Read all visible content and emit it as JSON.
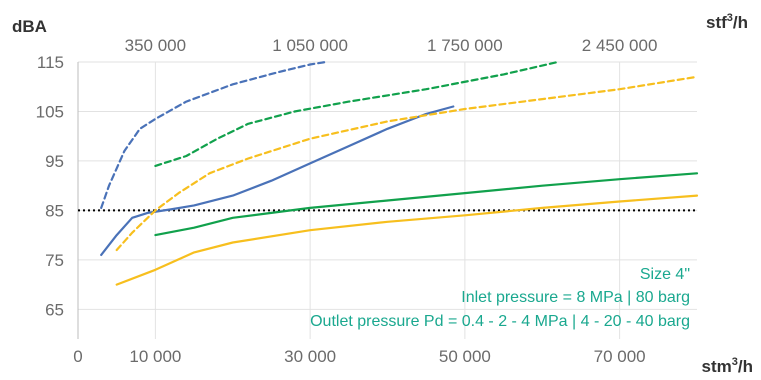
{
  "chart_data": {
    "type": "line",
    "y_unit_label": "dBA",
    "top_unit_base": "stf",
    "top_unit_sup": "3",
    "top_unit_tail": "/h",
    "bottom_unit_base": "stm",
    "bottom_unit_sup": "3",
    "bottom_unit_tail": "/h",
    "xlim": [
      0,
      80000
    ],
    "ylim": [
      59,
      115
    ],
    "y_ticks": [
      {
        "value": 115,
        "label": "115"
      },
      {
        "value": 105,
        "label": "105"
      },
      {
        "value": 95,
        "label": "95"
      },
      {
        "value": 85,
        "label": "85"
      },
      {
        "value": 75,
        "label": "75"
      },
      {
        "value": 65,
        "label": "65"
      }
    ],
    "x_ticks": [
      {
        "value": 0,
        "label": "0"
      },
      {
        "value": 10000,
        "label": "10 000"
      },
      {
        "value": 30000,
        "label": "30 000"
      },
      {
        "value": 50000,
        "label": "50 000"
      },
      {
        "value": 70000,
        "label": "70 000"
      }
    ],
    "top_ticks": [
      {
        "value": 10000,
        "label": "350 000"
      },
      {
        "value": 30000,
        "label": "1 050 000"
      },
      {
        "value": 50000,
        "label": "1 750 000"
      },
      {
        "value": 70000,
        "label": "2 450 000"
      }
    ],
    "reference_line": {
      "y": 85,
      "style": "dotted",
      "color": "#000000"
    },
    "annotations": [
      "Size 4\"",
      "Inlet pressure = 8 MPa | 80 barg",
      "Outlet pressure Pd = 0.4 - 2 - 4 MPa | 4 - 20 - 40 barg"
    ],
    "grid": true,
    "series": [
      {
        "color": "#4a72b8",
        "style": "dashed",
        "points": [
          [
            3000,
            85.5
          ],
          [
            4000,
            90
          ],
          [
            6000,
            97
          ],
          [
            8000,
            101.5
          ],
          [
            10000,
            103.5
          ],
          [
            14000,
            107
          ],
          [
            20000,
            110.5
          ],
          [
            26000,
            113
          ],
          [
            30000,
            114.5
          ],
          [
            32000,
            115
          ]
        ]
      },
      {
        "color": "#4a72b8",
        "style": "solid",
        "points": [
          [
            3000,
            76
          ],
          [
            5000,
            80
          ],
          [
            7000,
            83.5
          ],
          [
            9000,
            84.5
          ],
          [
            12000,
            85.2
          ],
          [
            15000,
            86
          ],
          [
            20000,
            88
          ],
          [
            25000,
            91
          ],
          [
            30000,
            94.5
          ],
          [
            35000,
            98
          ],
          [
            40000,
            101.5
          ],
          [
            45000,
            104.5
          ],
          [
            48500,
            106
          ]
        ]
      },
      {
        "color": "#11a14c",
        "style": "dashed",
        "points": [
          [
            10000,
            94
          ],
          [
            14000,
            96
          ],
          [
            18000,
            99.5
          ],
          [
            22000,
            102.5
          ],
          [
            28000,
            105
          ],
          [
            35000,
            107
          ],
          [
            45000,
            109.5
          ],
          [
            55000,
            112.5
          ],
          [
            62000,
            115
          ]
        ]
      },
      {
        "color": "#11a14c",
        "style": "solid",
        "points": [
          [
            10000,
            80
          ],
          [
            15000,
            81.5
          ],
          [
            20000,
            83.5
          ],
          [
            25000,
            84.5
          ],
          [
            30000,
            85.5
          ],
          [
            40000,
            87
          ],
          [
            50000,
            88.5
          ],
          [
            60000,
            90
          ],
          [
            70000,
            91.3
          ],
          [
            80000,
            92.5
          ]
        ]
      },
      {
        "color": "#f7bf1e",
        "style": "dashed",
        "points": [
          [
            5000,
            77
          ],
          [
            7000,
            80.5
          ],
          [
            10000,
            85
          ],
          [
            13000,
            88.5
          ],
          [
            17000,
            92.5
          ],
          [
            22000,
            95.5
          ],
          [
            30000,
            99.5
          ],
          [
            40000,
            103
          ],
          [
            50000,
            105.5
          ],
          [
            60000,
            107.5
          ],
          [
            70000,
            109.5
          ],
          [
            80000,
            112
          ]
        ]
      },
      {
        "color": "#f7bf1e",
        "style": "solid",
        "points": [
          [
            5000,
            70
          ],
          [
            10000,
            73
          ],
          [
            15000,
            76.5
          ],
          [
            20000,
            78.5
          ],
          [
            30000,
            81
          ],
          [
            40000,
            82.7
          ],
          [
            50000,
            84
          ],
          [
            60000,
            85.5
          ],
          [
            70000,
            86.8
          ],
          [
            80000,
            88
          ]
        ]
      }
    ]
  }
}
